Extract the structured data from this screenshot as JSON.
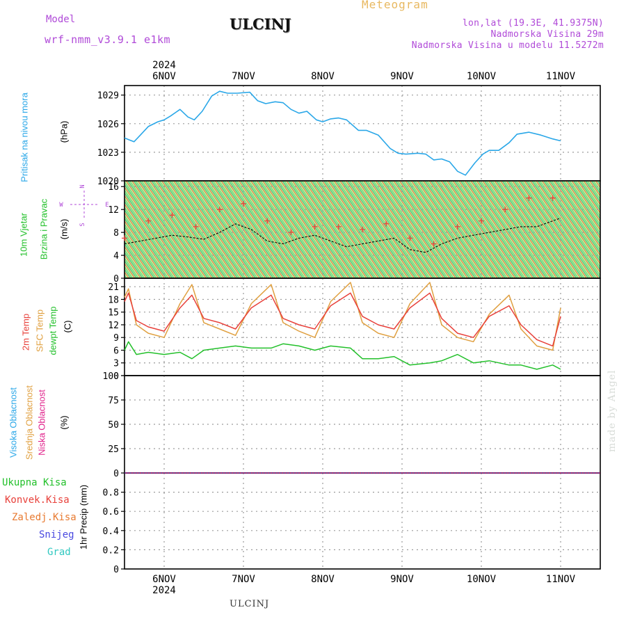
{
  "header": {
    "model_label": "Model",
    "model_value": "wrf-nmm_v3.9.1 e1km",
    "station": "ULCINJ",
    "title": "Meteogram",
    "lonlat": "lon,lat (19.3E, 41.9375N)",
    "altitude": "Nadmorska Visina 29m",
    "model_altitude": "Nadmorska Visina u modelu 11.5272m"
  },
  "footer": {
    "station": "ULCINJ",
    "watermark": "made by Angel"
  },
  "colors": {
    "pressure": "#2aa7e8",
    "temp2m": "#e8403a",
    "sfc": "#e0a040",
    "dewpt": "#22c02a",
    "purple": "#b04ad8",
    "windspeed": "#000000",
    "gust": "#e8403a"
  },
  "axes_labels": {
    "pressure": {
      "name": "Pritisak na nivou mora",
      "unit": "(hPa)"
    },
    "wind": {
      "name1": "10m Vjetar",
      "name2": "Brzina i Pravac",
      "unit": "(m/s)",
      "rose_n": "N",
      "rose_s": "S",
      "rose_w": "W",
      "rose_e": "E"
    },
    "temp": {
      "name1": "2m Temp",
      "name2": "SFC Temp",
      "name3": "dewpt Temp",
      "unit": "(C)"
    },
    "cloud": {
      "name1": "Visoka Oblacnost",
      "name2": "Srednja Oblacnost",
      "name3": "Niska Oblacnost",
      "unit": "(%)"
    },
    "precip": {
      "unit": "1hr Precip (mm)"
    }
  },
  "precip_legend": [
    {
      "label": "Ukupna Kisa",
      "color": "#22c02a"
    },
    {
      "label": "Konvek.Kisa",
      "color": "#e8403a"
    },
    {
      "label": "Zaledj.Kisa",
      "color": "#e87a30"
    },
    {
      "label": "Snijeg",
      "color": "#4848e0"
    },
    {
      "label": "Grad",
      "color": "#30c8c0"
    }
  ],
  "chart_data": [
    {
      "type": "line",
      "name": "pressure",
      "x_days": [
        "6NOV",
        "7NOV",
        "8NOV",
        "9NOV",
        "10NOV",
        "11NOV"
      ],
      "year": "2024",
      "x_range_days": [
        0,
        6
      ],
      "ylim": [
        1020,
        1030
      ],
      "yticks": [
        1020,
        1023,
        1026,
        1029
      ],
      "x": [
        0,
        0.06,
        0.12,
        0.2,
        0.3,
        0.42,
        0.5,
        0.58,
        0.7,
        0.8,
        0.88,
        0.98,
        1.1,
        1.2,
        1.3,
        1.42,
        1.58,
        1.68,
        1.78,
        1.9,
        2.0,
        2.1,
        2.2,
        2.3,
        2.42,
        2.5,
        2.6,
        2.7,
        2.8,
        2.95,
        3.05,
        3.2,
        3.35,
        3.45,
        3.55,
        3.7,
        3.8,
        3.9,
        4.0,
        4.1,
        4.2,
        4.3,
        4.42,
        4.52,
        4.6,
        4.72,
        4.85,
        4.95,
        5.1,
        5.25,
        5.4,
        5.5
      ],
      "y": [
        1024.5,
        1024.3,
        1024.1,
        1024.8,
        1025.7,
        1026.2,
        1026.4,
        1026.8,
        1027.5,
        1026.7,
        1026.4,
        1027.3,
        1028.9,
        1029.4,
        1029.2,
        1029.2,
        1029.3,
        1028.4,
        1028.1,
        1028.3,
        1028.2,
        1027.5,
        1027.1,
        1027.3,
        1026.4,
        1026.2,
        1026.5,
        1026.6,
        1026.4,
        1025.3,
        1025.3,
        1024.8,
        1023.4,
        1022.9,
        1022.8,
        1022.9,
        1022.8,
        1022.2,
        1022.3,
        1022.0,
        1021.0,
        1020.6,
        1021.9,
        1022.8,
        1023.2,
        1023.2,
        1024.0,
        1024.9,
        1025.1,
        1024.8,
        1024.4,
        1024.2
      ]
    },
    {
      "type": "line",
      "name": "wind",
      "ylim": [
        0,
        17
      ],
      "yticks": [
        0,
        4,
        8,
        12,
        16
      ],
      "series": [
        {
          "name": "speed",
          "x": [
            0,
            0.2,
            0.4,
            0.6,
            0.8,
            1.0,
            1.2,
            1.4,
            1.6,
            1.8,
            2.0,
            2.2,
            2.4,
            2.6,
            2.8,
            3.0,
            3.2,
            3.4,
            3.6,
            3.8,
            4.0,
            4.2,
            4.4,
            4.6,
            4.8,
            5.0,
            5.2,
            5.4,
            5.5
          ],
          "y": [
            6,
            6.5,
            7,
            7.5,
            7.2,
            6.8,
            8,
            9.5,
            8.5,
            6.5,
            6,
            7,
            7.5,
            6.5,
            5.5,
            6,
            6.5,
            7,
            5,
            4.5,
            6,
            7,
            7.5,
            8,
            8.5,
            9,
            9,
            10,
            10.5
          ]
        },
        {
          "name": "gust",
          "x": [
            0,
            0.3,
            0.6,
            0.9,
            1.2,
            1.5,
            1.8,
            2.1,
            2.4,
            2.7,
            3.0,
            3.3,
            3.6,
            3.9,
            4.2,
            4.5,
            4.8,
            5.1,
            5.4
          ],
          "y": [
            7,
            10,
            11,
            9,
            12,
            13,
            10,
            8,
            9,
            9,
            8.5,
            9.5,
            7,
            6,
            9,
            10,
            12,
            14,
            14
          ]
        }
      ]
    },
    {
      "type": "line",
      "name": "temperature",
      "ylim": [
        0,
        23
      ],
      "yticks": [
        0,
        3,
        6,
        9,
        12,
        15,
        18,
        21
      ],
      "series": [
        {
          "name": "2m Temp",
          "x": [
            0,
            0.05,
            0.15,
            0.3,
            0.5,
            0.7,
            0.85,
            1.0,
            1.2,
            1.4,
            1.6,
            1.85,
            2.0,
            2.2,
            2.4,
            2.6,
            2.85,
            3.0,
            3.2,
            3.4,
            3.6,
            3.85,
            4.0,
            4.2,
            4.4,
            4.6,
            4.85,
            5.0,
            5.2,
            5.4,
            5.5
          ],
          "y": [
            17.5,
            19.5,
            13,
            11.5,
            10.5,
            16,
            19,
            13.5,
            12.5,
            11,
            16,
            19,
            13.5,
            12,
            11,
            16.5,
            19.5,
            14,
            12,
            11,
            16,
            19.5,
            13.5,
            10,
            9,
            14,
            16.5,
            12,
            8.5,
            7,
            14
          ]
        },
        {
          "name": "SFC Temp",
          "x": [
            0,
            0.05,
            0.15,
            0.3,
            0.5,
            0.7,
            0.85,
            1.0,
            1.2,
            1.4,
            1.6,
            1.85,
            2.0,
            2.2,
            2.4,
            2.6,
            2.85,
            3.0,
            3.2,
            3.4,
            3.6,
            3.85,
            4.0,
            4.2,
            4.4,
            4.6,
            4.85,
            5.0,
            5.2,
            5.4,
            5.5
          ],
          "y": [
            18.5,
            20.5,
            12,
            10,
            9,
            17,
            21.5,
            12.5,
            11,
            9.5,
            17,
            21.5,
            12.5,
            10.5,
            9,
            17.5,
            22,
            12.5,
            10,
            9,
            17,
            22,
            12,
            9,
            8,
            14.5,
            19,
            11,
            7,
            6,
            16
          ]
        },
        {
          "name": "dewpt Temp",
          "x": [
            0,
            0.05,
            0.15,
            0.3,
            0.5,
            0.7,
            0.85,
            1.0,
            1.2,
            1.4,
            1.6,
            1.85,
            2.0,
            2.2,
            2.4,
            2.6,
            2.85,
            3.0,
            3.2,
            3.4,
            3.6,
            3.85,
            4.0,
            4.2,
            4.4,
            4.6,
            4.85,
            5.0,
            5.2,
            5.4,
            5.5
          ],
          "y": [
            6,
            8,
            5,
            5.5,
            5,
            5.5,
            4,
            6,
            6.5,
            7,
            6.5,
            6.5,
            7.5,
            7,
            6,
            7,
            6.5,
            4,
            4,
            4.5,
            2.5,
            3,
            3.5,
            5,
            3,
            3.5,
            2.5,
            2.5,
            1.5,
            2.5,
            1.5
          ]
        }
      ]
    },
    {
      "type": "line",
      "name": "cloud",
      "ylim": [
        0,
        100
      ],
      "yticks": [
        0,
        25,
        50,
        75,
        100
      ],
      "series": [
        {
          "name": "Visoka Oblacnost",
          "x": [
            0,
            6
          ],
          "y": [
            0,
            0
          ]
        },
        {
          "name": "Srednja Oblacnost",
          "x": [
            0,
            6
          ],
          "y": [
            0,
            0
          ]
        },
        {
          "name": "Niska Oblacnost",
          "x": [
            0,
            6
          ],
          "y": [
            0,
            0
          ]
        }
      ]
    },
    {
      "type": "bar",
      "name": "precip",
      "ylim": [
        0,
        1
      ],
      "yticks": [
        0,
        0.2,
        0.4,
        0.6,
        0.8
      ],
      "values": []
    }
  ]
}
